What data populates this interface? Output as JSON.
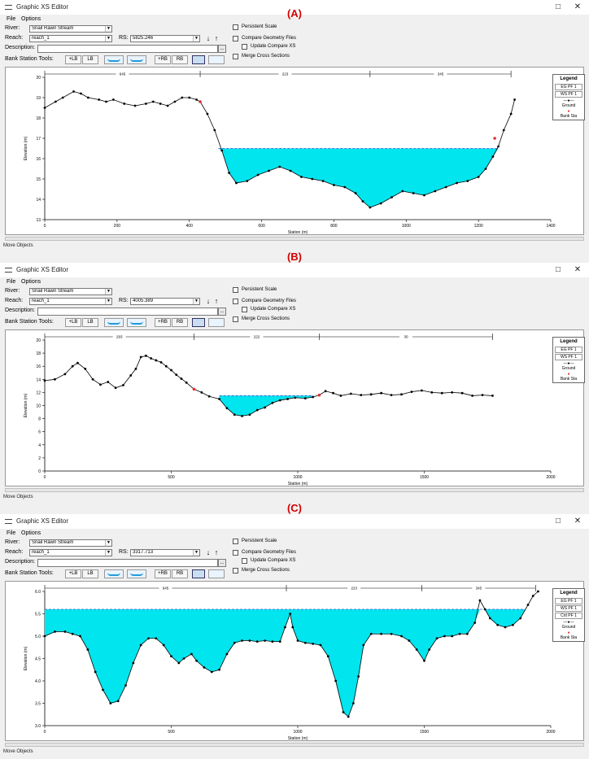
{
  "colors": {
    "water": "#00e5ee",
    "ground": "#000000",
    "bank_station": "#e03030",
    "panel_label": "#d40000",
    "ws_line": "#3355cc"
  },
  "window": {
    "title": "Graphic XS Editor",
    "menu": [
      "File",
      "Options"
    ],
    "river_label": "River:",
    "river_value": "Snail Rawn Stream",
    "reach_label": "Reach:",
    "reach_value": "reach_1",
    "rs_label": "RS:",
    "description_label": "Description:",
    "description_button": "...",
    "bank_tools_label": "Bank Station Tools:",
    "lob_button": "+LB",
    "lob_button2": "LB",
    "rob_button": "+RB",
    "rob_button2": "RB",
    "persistent_scale": "Persistent Scale",
    "compare_geometry": "Compare Geometry Files",
    "update_compare": "Update Compare XS",
    "merge_cross": "Merge Cross Sections",
    "status_text": "Move Objects",
    "minimize_icon": "minimize-icon",
    "maximize_icon": "maximize-icon",
    "close_icon": "close-icon"
  },
  "panels": [
    {
      "label": "(A)",
      "rs_value": "5825.246",
      "ylabel": "Elevation (m)",
      "xlabel": "Station (m)",
      "legend": {
        "title": "Legend",
        "items": [
          "EG PF 1",
          "WS PF 1"
        ],
        "ground": "Ground",
        "bank": "Bank Sta"
      },
      "reach_lengths": [
        "645",
        "223",
        "345"
      ],
      "chart_data": {
        "type": "area",
        "xlim": [
          0,
          1400
        ],
        "ylim": [
          13,
          20
        ],
        "xticks": [
          0,
          200,
          400,
          600,
          800,
          1000,
          1200,
          1400
        ],
        "yticks": [
          13,
          14,
          15,
          16,
          17,
          18,
          19,
          20
        ],
        "water_surface": 16.5,
        "water_start_x": 480,
        "water_end_x": 1255,
        "bank_stations": [
          [
            430,
            18.8
          ],
          [
            1245,
            17.0
          ]
        ],
        "reach_markers_x": [
          0,
          430,
          900,
          1290
        ],
        "ground": [
          [
            0,
            18.5
          ],
          [
            30,
            18.8
          ],
          [
            50,
            19.0
          ],
          [
            80,
            19.3
          ],
          [
            100,
            19.2
          ],
          [
            120,
            19.0
          ],
          [
            150,
            18.9
          ],
          [
            170,
            18.8
          ],
          [
            190,
            18.9
          ],
          [
            220,
            18.7
          ],
          [
            250,
            18.6
          ],
          [
            280,
            18.7
          ],
          [
            300,
            18.8
          ],
          [
            320,
            18.7
          ],
          [
            340,
            18.6
          ],
          [
            360,
            18.8
          ],
          [
            380,
            19.0
          ],
          [
            400,
            19.0
          ],
          [
            420,
            18.9
          ],
          [
            430,
            18.8
          ],
          [
            450,
            18.2
          ],
          [
            470,
            17.4
          ],
          [
            490,
            16.4
          ],
          [
            510,
            15.3
          ],
          [
            530,
            14.8
          ],
          [
            560,
            14.9
          ],
          [
            590,
            15.2
          ],
          [
            620,
            15.4
          ],
          [
            650,
            15.6
          ],
          [
            680,
            15.4
          ],
          [
            710,
            15.1
          ],
          [
            740,
            15.0
          ],
          [
            770,
            14.9
          ],
          [
            800,
            14.7
          ],
          [
            830,
            14.6
          ],
          [
            860,
            14.3
          ],
          [
            880,
            13.9
          ],
          [
            900,
            13.6
          ],
          [
            930,
            13.8
          ],
          [
            960,
            14.1
          ],
          [
            990,
            14.4
          ],
          [
            1020,
            14.3
          ],
          [
            1050,
            14.2
          ],
          [
            1080,
            14.4
          ],
          [
            1110,
            14.6
          ],
          [
            1140,
            14.8
          ],
          [
            1170,
            14.9
          ],
          [
            1200,
            15.1
          ],
          [
            1220,
            15.5
          ],
          [
            1240,
            16.1
          ],
          [
            1255,
            16.6
          ],
          [
            1270,
            17.4
          ],
          [
            1290,
            18.2
          ],
          [
            1300,
            18.9
          ]
        ]
      }
    },
    {
      "label": "(B)",
      "rs_value": "4005.389",
      "ylabel": "Elevation (m)",
      "xlabel": "Station (m)",
      "legend": {
        "title": "Legend",
        "items": [
          "EG PF 1",
          "WS PF 1"
        ],
        "ground": "Ground",
        "bank": "Bank Sta"
      },
      "reach_lengths": [
        "293",
        "222",
        "30"
      ],
      "chart_data": {
        "type": "area",
        "xlim": [
          0,
          2000
        ],
        "ylim": [
          0,
          20
        ],
        "xticks": [
          0,
          500,
          1000,
          1500,
          2000
        ],
        "yticks": [
          0,
          2,
          4,
          6,
          8,
          10,
          12,
          14,
          16,
          18,
          20
        ],
        "water_surface": 11.5,
        "water_start_x": 690,
        "water_end_x": 1060,
        "bank_stations": [
          [
            590,
            12.5
          ],
          [
            1085,
            11.6
          ]
        ],
        "reach_markers_x": [
          0,
          590,
          1085,
          1770
        ],
        "ground": [
          [
            0,
            13.8
          ],
          [
            40,
            14.0
          ],
          [
            80,
            14.8
          ],
          [
            110,
            16.0
          ],
          [
            130,
            16.5
          ],
          [
            160,
            15.6
          ],
          [
            190,
            14.0
          ],
          [
            220,
            13.2
          ],
          [
            250,
            13.6
          ],
          [
            280,
            12.7
          ],
          [
            310,
            13.1
          ],
          [
            340,
            14.6
          ],
          [
            360,
            15.6
          ],
          [
            380,
            17.4
          ],
          [
            400,
            17.6
          ],
          [
            420,
            17.2
          ],
          [
            440,
            16.9
          ],
          [
            460,
            16.6
          ],
          [
            480,
            16.0
          ],
          [
            500,
            15.4
          ],
          [
            520,
            14.7
          ],
          [
            540,
            14.1
          ],
          [
            560,
            13.5
          ],
          [
            590,
            12.5
          ],
          [
            620,
            12.0
          ],
          [
            650,
            11.4
          ],
          [
            690,
            11.0
          ],
          [
            720,
            9.6
          ],
          [
            750,
            8.6
          ],
          [
            780,
            8.4
          ],
          [
            810,
            8.6
          ],
          [
            840,
            9.3
          ],
          [
            870,
            9.7
          ],
          [
            900,
            10.4
          ],
          [
            930,
            10.8
          ],
          [
            960,
            11.0
          ],
          [
            990,
            11.2
          ],
          [
            1030,
            11.1
          ],
          [
            1060,
            11.3
          ],
          [
            1085,
            11.6
          ],
          [
            1110,
            12.2
          ],
          [
            1140,
            11.9
          ],
          [
            1170,
            11.5
          ],
          [
            1210,
            11.8
          ],
          [
            1250,
            11.6
          ],
          [
            1290,
            11.7
          ],
          [
            1330,
            11.9
          ],
          [
            1370,
            11.6
          ],
          [
            1410,
            11.7
          ],
          [
            1450,
            12.1
          ],
          [
            1490,
            12.3
          ],
          [
            1530,
            12.0
          ],
          [
            1570,
            11.9
          ],
          [
            1610,
            12.0
          ],
          [
            1650,
            11.9
          ],
          [
            1690,
            11.5
          ],
          [
            1730,
            11.6
          ],
          [
            1770,
            11.5
          ]
        ]
      }
    },
    {
      "label": "(C)",
      "rs_value": "3317.713",
      "ylabel": "Elevation (m)",
      "xlabel": "Station (m)",
      "legend": {
        "title": "Legend",
        "items": [
          "EG PF 1",
          "WS PF 1",
          "Crit PF 1"
        ],
        "ground": "Ground",
        "bank": "Bank Sta"
      },
      "reach_lengths": [
        "645",
        "223",
        "345"
      ],
      "chart_data": {
        "type": "area",
        "xlim": [
          0,
          2000
        ],
        "ylim": [
          3.0,
          6.0
        ],
        "xticks": [
          0,
          500,
          1000,
          1500,
          2000
        ],
        "yticks": [
          3.0,
          3.5,
          4.0,
          4.5,
          5.0,
          5.5,
          6.0
        ],
        "water_surface": 5.6,
        "water_start_x": 0,
        "water_end_x": 1900,
        "bank_stations": [],
        "reach_markers_x": [
          0,
          955,
          1490,
          1940
        ],
        "ground": [
          [
            0,
            5.0
          ],
          [
            40,
            5.1
          ],
          [
            80,
            5.1
          ],
          [
            110,
            5.05
          ],
          [
            140,
            5.0
          ],
          [
            170,
            4.7
          ],
          [
            200,
            4.2
          ],
          [
            230,
            3.8
          ],
          [
            260,
            3.5
          ],
          [
            290,
            3.55
          ],
          [
            320,
            3.9
          ],
          [
            350,
            4.4
          ],
          [
            380,
            4.8
          ],
          [
            410,
            4.95
          ],
          [
            440,
            4.95
          ],
          [
            470,
            4.8
          ],
          [
            500,
            4.55
          ],
          [
            530,
            4.4
          ],
          [
            550,
            4.5
          ],
          [
            580,
            4.6
          ],
          [
            600,
            4.45
          ],
          [
            630,
            4.3
          ],
          [
            660,
            4.2
          ],
          [
            690,
            4.25
          ],
          [
            720,
            4.6
          ],
          [
            750,
            4.85
          ],
          [
            780,
            4.9
          ],
          [
            810,
            4.9
          ],
          [
            840,
            4.88
          ],
          [
            870,
            4.9
          ],
          [
            900,
            4.88
          ],
          [
            930,
            4.88
          ],
          [
            950,
            5.2
          ],
          [
            970,
            5.5
          ],
          [
            980,
            5.2
          ],
          [
            1000,
            4.9
          ],
          [
            1030,
            4.85
          ],
          [
            1060,
            4.83
          ],
          [
            1090,
            4.8
          ],
          [
            1120,
            4.55
          ],
          [
            1150,
            4.0
          ],
          [
            1180,
            3.3
          ],
          [
            1200,
            3.2
          ],
          [
            1220,
            3.5
          ],
          [
            1240,
            4.1
          ],
          [
            1260,
            4.8
          ],
          [
            1290,
            5.05
          ],
          [
            1330,
            5.05
          ],
          [
            1370,
            5.05
          ],
          [
            1410,
            5.0
          ],
          [
            1440,
            4.9
          ],
          [
            1470,
            4.7
          ],
          [
            1500,
            4.45
          ],
          [
            1520,
            4.7
          ],
          [
            1550,
            4.95
          ],
          [
            1580,
            5.0
          ],
          [
            1610,
            5.0
          ],
          [
            1640,
            5.05
          ],
          [
            1670,
            5.05
          ],
          [
            1700,
            5.3
          ],
          [
            1720,
            5.8
          ],
          [
            1740,
            5.6
          ],
          [
            1760,
            5.4
          ],
          [
            1790,
            5.25
          ],
          [
            1820,
            5.2
          ],
          [
            1850,
            5.25
          ],
          [
            1880,
            5.4
          ],
          [
            1910,
            5.7
          ],
          [
            1930,
            5.9
          ],
          [
            1950,
            6.0
          ]
        ]
      }
    }
  ]
}
